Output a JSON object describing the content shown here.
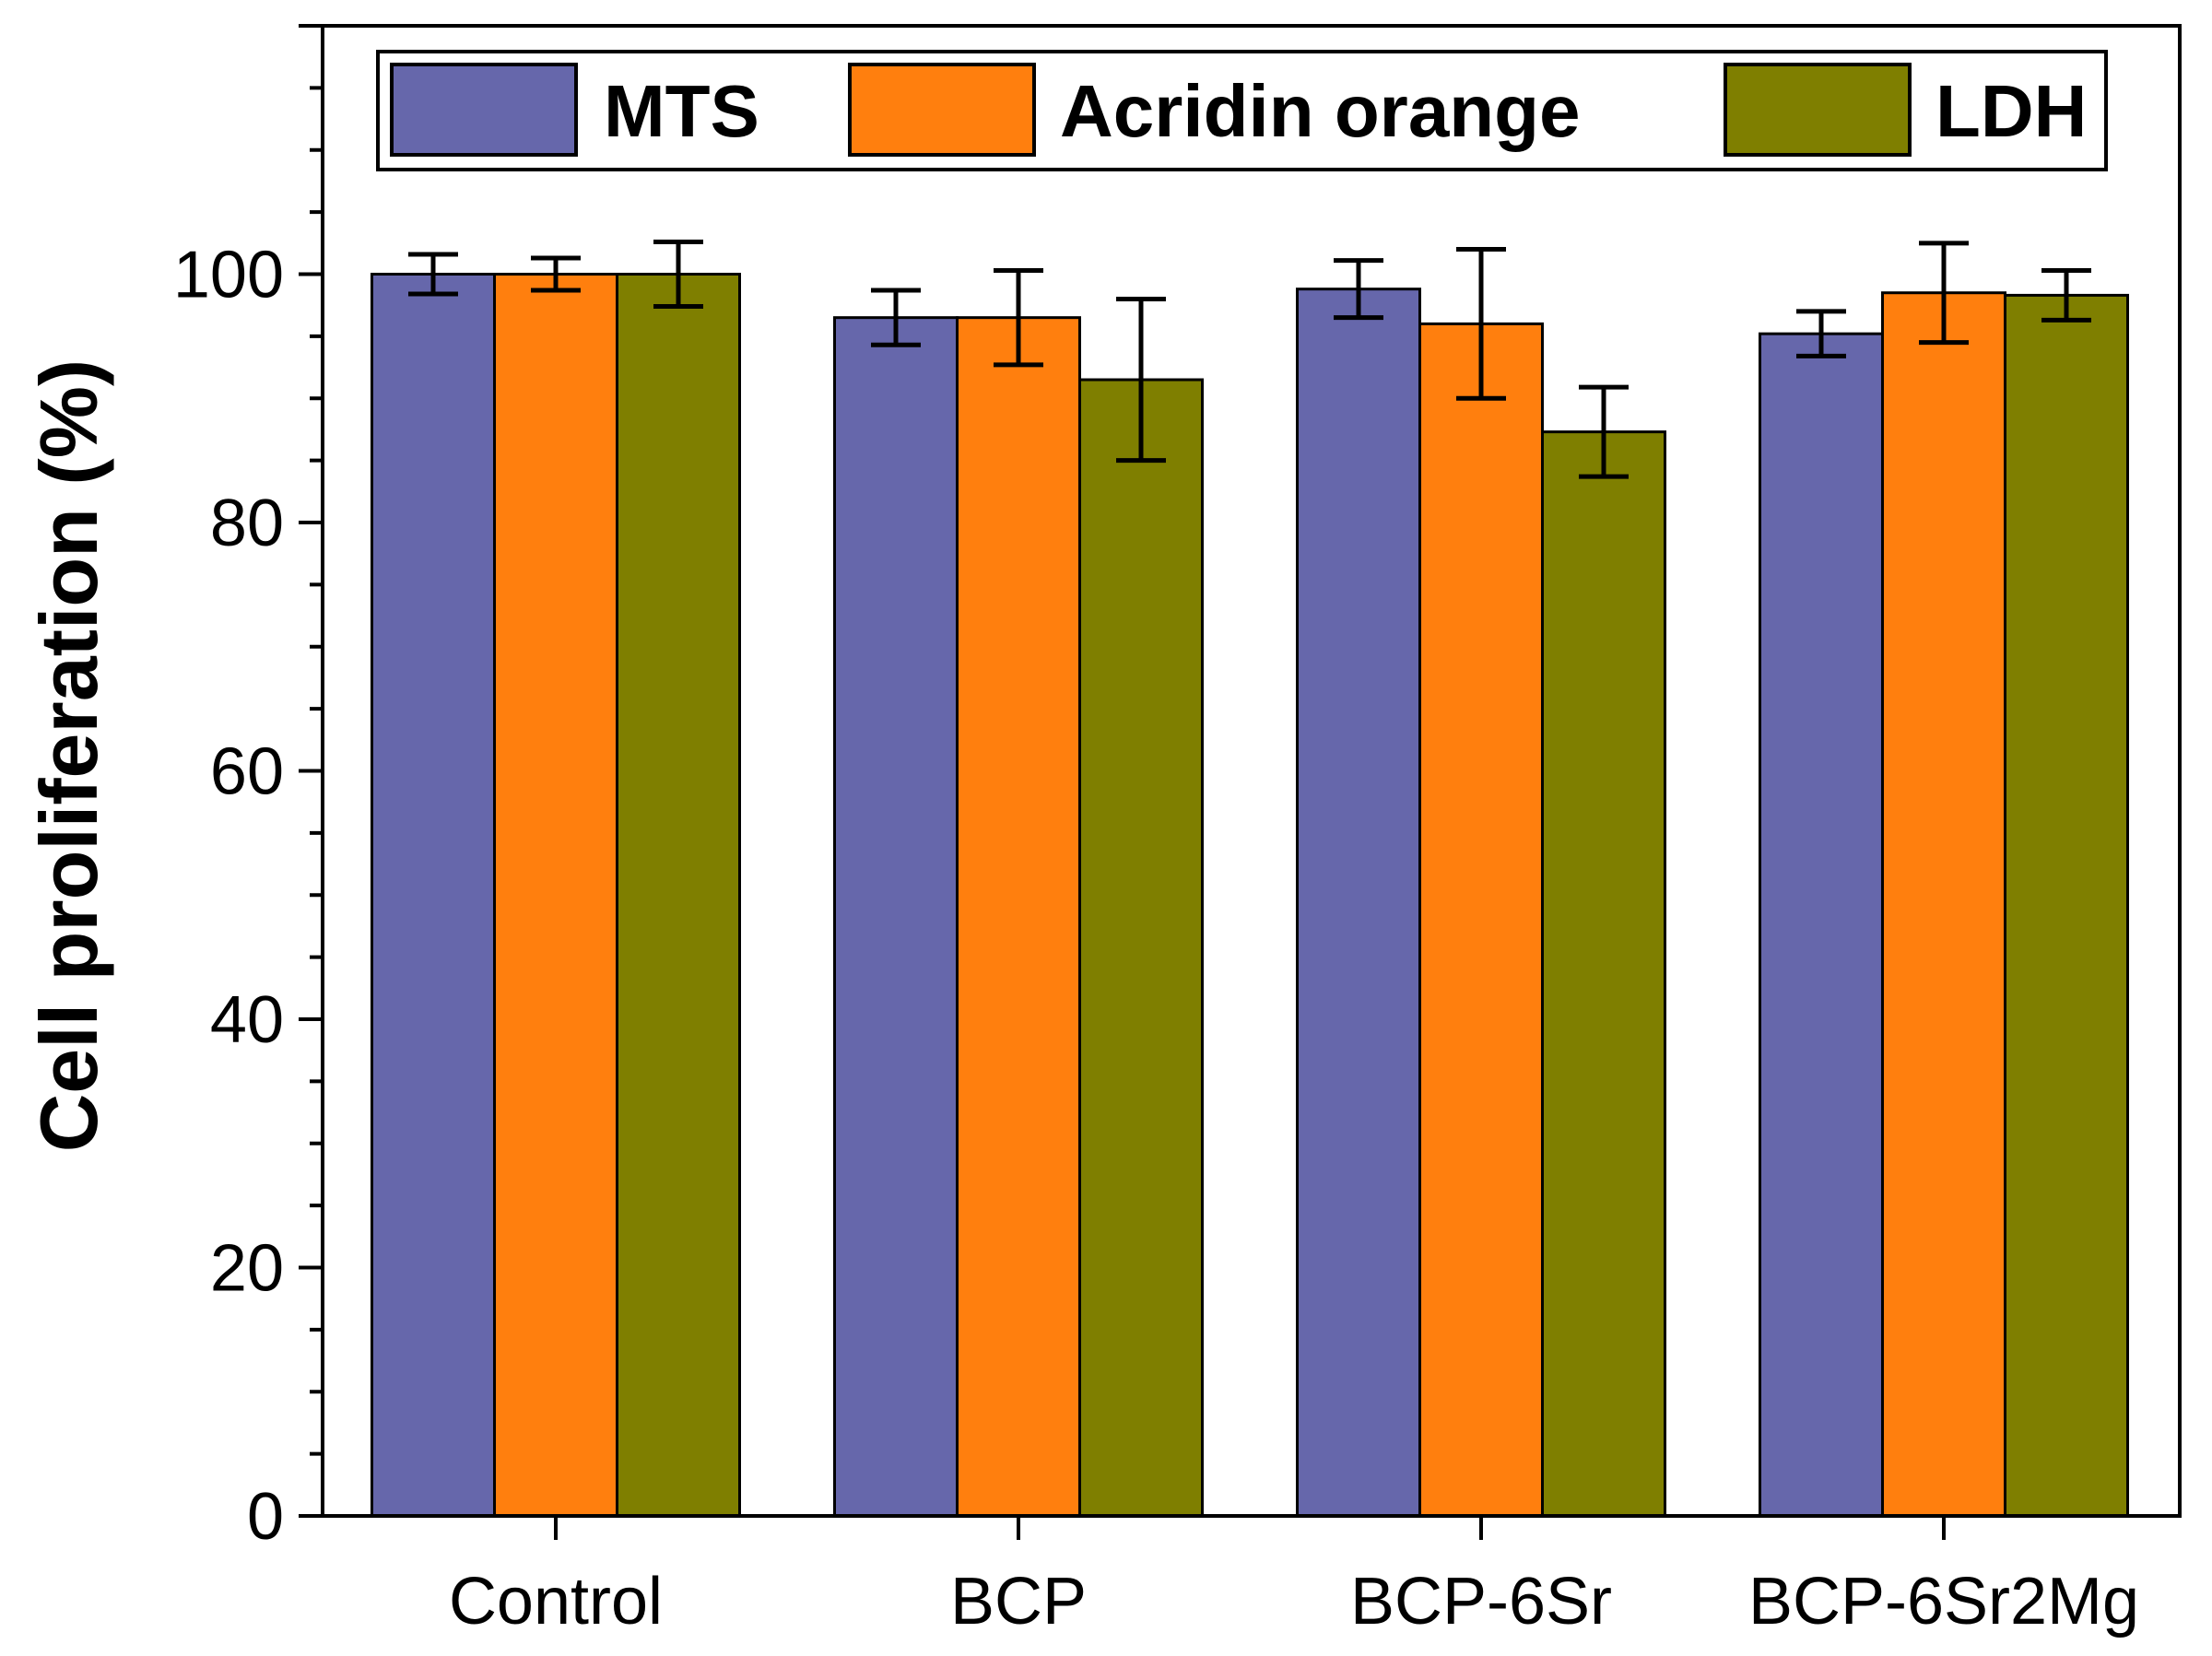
{
  "chart_data": {
    "type": "bar",
    "title": "",
    "xlabel": "",
    "ylabel": "Cell proliferation (%)",
    "ylim": [
      0,
      120
    ],
    "yticks": [
      0,
      20,
      40,
      60,
      80,
      100
    ],
    "ytick_labels": [
      "0",
      "20",
      "40",
      "60",
      "80",
      "100"
    ],
    "categories": [
      "Control",
      "BCP",
      "BCP-6Sr",
      "BCP-6Sr2Mg"
    ],
    "series": [
      {
        "name": "MTS",
        "color": "#6667AB",
        "values": [
          100.0,
          96.5,
          98.8,
          95.2
        ],
        "errors": [
          1.6,
          2.2,
          2.3,
          1.8
        ]
      },
      {
        "name": "Acridin orange",
        "color": "#FF7F0E",
        "values": [
          100.0,
          96.5,
          96.0,
          98.5
        ],
        "errors": [
          1.3,
          3.8,
          6.0,
          4.0
        ]
      },
      {
        "name": "LDH",
        "color": "#7F7F00",
        "values": [
          100.0,
          91.5,
          87.3,
          98.3
        ],
        "errors": [
          2.6,
          6.5,
          3.6,
          2.0
        ]
      }
    ],
    "legend_position": "top",
    "grid": false,
    "error_bars": true
  }
}
